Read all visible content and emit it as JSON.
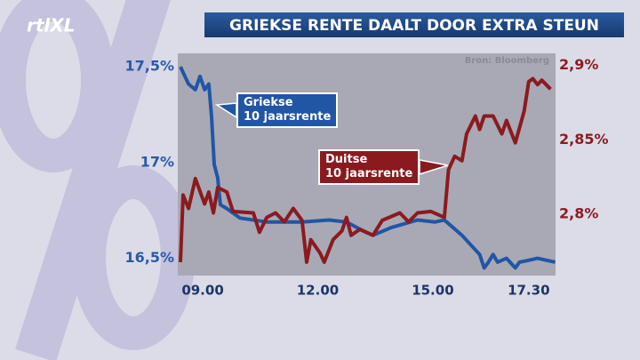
{
  "logo": "rtlXL",
  "chart_data": {
    "type": "line",
    "title": "GRIEKSE RENTE DAALT DOOR EXTRA STEUN",
    "source": "Bron: Bloomberg",
    "xlim": [
      8.35,
      18.2
    ],
    "xticks": [
      {
        "value": 9,
        "label": "09.00"
      },
      {
        "value": 12,
        "label": "12.00"
      },
      {
        "value": 15,
        "label": "15.00"
      },
      {
        "value": 17.5,
        "label": "17.30"
      }
    ],
    "ylim": [
      16.41,
      17.57
    ],
    "yticks": [
      {
        "value": 16.5,
        "label": "16,5%"
      },
      {
        "value": 17,
        "label": "17%"
      },
      {
        "value": 17.5,
        "label": "17,5%"
      }
    ],
    "y2lim": [
      2.759,
      2.908
    ],
    "y2ticks": [
      {
        "value": 2.8,
        "label": "2,8%"
      },
      {
        "value": 2.85,
        "label": "2,85%"
      },
      {
        "value": 2.9,
        "label": "2,9%"
      }
    ],
    "series": [
      {
        "name": "Griekse\n10 jaarsrente",
        "color": "#2156a5",
        "axis": "y",
        "x": [
          8.42,
          8.63,
          8.81,
          8.93,
          9.05,
          9.16,
          9.23,
          9.3,
          9.39,
          9.46,
          9.63,
          9.97,
          10.67,
          11.59,
          12.29,
          12.75,
          13.21,
          13.44,
          13.91,
          14.6,
          15.06,
          15.3,
          15.76,
          16.22,
          16.34,
          16.45,
          16.57,
          16.69,
          16.92,
          17.15,
          17.26,
          17.5,
          17.73,
          18.19
        ],
        "values": [
          17.5,
          17.41,
          17.38,
          17.45,
          17.38,
          17.41,
          17.24,
          16.99,
          16.92,
          16.78,
          16.76,
          16.71,
          16.69,
          16.69,
          16.7,
          16.69,
          16.64,
          16.62,
          16.66,
          16.7,
          16.69,
          16.7,
          16.62,
          16.52,
          16.45,
          16.48,
          16.52,
          16.48,
          16.5,
          16.45,
          16.48,
          16.49,
          16.5,
          16.48
        ]
      },
      {
        "name": "Duitse\n10 jaarsrente",
        "color": "#8b1a1f",
        "axis": "y2",
        "x": [
          8.42,
          8.49,
          8.63,
          8.81,
          9.05,
          9.16,
          9.28,
          9.39,
          9.63,
          9.79,
          10.32,
          10.48,
          10.67,
          10.9,
          11.13,
          11.36,
          11.59,
          11.71,
          11.82,
          12.06,
          12.17,
          12.4,
          12.63,
          12.75,
          12.87,
          13.1,
          13.44,
          13.68,
          14.14,
          14.37,
          14.6,
          14.95,
          15.3,
          15.41,
          15.57,
          15.76,
          15.88,
          16.11,
          16.22,
          16.34,
          16.57,
          16.8,
          16.92,
          17.15,
          17.38,
          17.5,
          17.61,
          17.73,
          17.84,
          18.07
        ],
        "values": [
          2.768,
          2.813,
          2.804,
          2.824,
          2.807,
          2.815,
          2.801,
          2.818,
          2.815,
          2.802,
          2.801,
          2.788,
          2.798,
          2.801,
          2.795,
          2.804,
          2.796,
          2.768,
          2.783,
          2.774,
          2.768,
          2.783,
          2.789,
          2.798,
          2.786,
          2.79,
          2.786,
          2.796,
          2.801,
          2.795,
          2.801,
          2.802,
          2.798,
          2.83,
          2.839,
          2.836,
          2.854,
          2.866,
          2.857,
          2.866,
          2.866,
          2.854,
          2.863,
          2.848,
          2.869,
          2.889,
          2.891,
          2.887,
          2.89,
          2.884
        ]
      }
    ]
  }
}
